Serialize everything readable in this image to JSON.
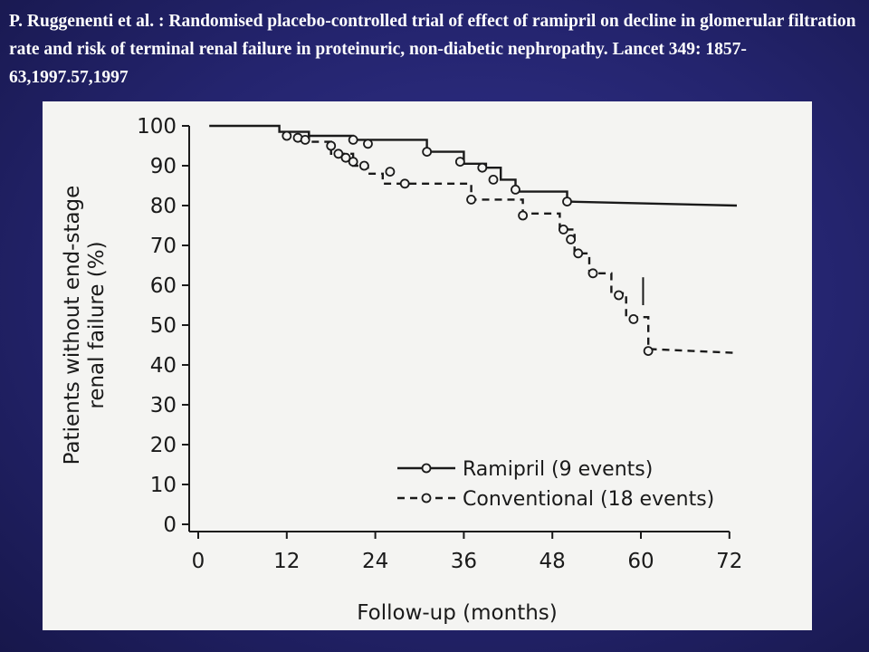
{
  "slide": {
    "title": "P. Ruggenenti et al. : Randomised placebo-controlled trial of effect of ramipril on decline in glomerular filtration rate and risk of terminal renal failure in proteinuric, non-diabetic nephropathy. Lancet 349: 1857-63,1997.57,1997"
  },
  "colors": {
    "background": "#24246e",
    "title_text": "#ffffff",
    "figure_background": "#f4f4f2",
    "ink": "#1a1a1a"
  },
  "chart_data": {
    "type": "line",
    "title": "",
    "xlabel": "Follow-up (months)",
    "ylabel": "Patients without end-stage renal failure (%)",
    "xlim": [
      0,
      72
    ],
    "ylim": [
      0,
      100
    ],
    "xticks": [
      0,
      12,
      24,
      36,
      48,
      60,
      72
    ],
    "yticks": [
      0,
      10,
      20,
      30,
      40,
      50,
      60,
      70,
      80,
      90,
      100
    ],
    "grid": false,
    "legend_position": "lower-right",
    "series": [
      {
        "name": "Ramipril (9 events)",
        "style": "solid",
        "step": [
          [
            1.5,
            100
          ],
          [
            11,
            100
          ],
          [
            11,
            98.5
          ],
          [
            15,
            98.5
          ],
          [
            15,
            97.5
          ],
          [
            21,
            97.5
          ],
          [
            21,
            96.5
          ],
          [
            31,
            96.5
          ],
          [
            31,
            93.5
          ],
          [
            36,
            93.5
          ],
          [
            36,
            90.5
          ],
          [
            39,
            90.5
          ],
          [
            39,
            89.5
          ],
          [
            41,
            89.5
          ],
          [
            41,
            86.5
          ],
          [
            43,
            86.5
          ],
          [
            43,
            83.5
          ],
          [
            50,
            83.5
          ],
          [
            50,
            81
          ],
          [
            73,
            80
          ]
        ],
        "markers": [
          [
            12,
            97.5
          ],
          [
            13.5,
            97
          ],
          [
            14.5,
            96.5
          ],
          [
            21,
            96.5
          ],
          [
            23,
            95.5
          ],
          [
            31,
            93.5
          ],
          [
            35.5,
            91
          ],
          [
            38.5,
            89.5
          ],
          [
            40,
            86.5
          ],
          [
            43,
            84
          ],
          [
            50,
            81
          ]
        ]
      },
      {
        "name": "Conventional (18 events)",
        "style": "dashed",
        "step": [
          [
            15,
            98.5
          ],
          [
            15,
            96
          ],
          [
            18,
            96
          ],
          [
            18,
            93
          ],
          [
            21,
            93
          ],
          [
            21,
            90
          ],
          [
            23,
            90
          ],
          [
            23,
            88
          ],
          [
            25,
            88
          ],
          [
            25,
            85.5
          ],
          [
            37,
            85.5
          ],
          [
            37,
            81.5
          ],
          [
            44,
            81.5
          ],
          [
            44,
            78
          ],
          [
            49,
            78
          ],
          [
            49,
            74
          ],
          [
            51,
            74
          ],
          [
            51,
            68
          ],
          [
            53,
            68
          ],
          [
            53,
            63
          ],
          [
            56,
            63
          ],
          [
            56,
            58
          ],
          [
            58,
            58
          ],
          [
            58,
            52
          ],
          [
            61,
            52
          ],
          [
            61,
            44
          ],
          [
            73,
            43
          ]
        ],
        "markers": [
          [
            18,
            95
          ],
          [
            19,
            93
          ],
          [
            20,
            92
          ],
          [
            21,
            91
          ],
          [
            22.5,
            90
          ],
          [
            26,
            88.5
          ],
          [
            28,
            85.5
          ],
          [
            37,
            81.5
          ],
          [
            44,
            77.5
          ],
          [
            49.5,
            74
          ],
          [
            50.5,
            71.5
          ],
          [
            51.5,
            68
          ],
          [
            53.5,
            63
          ],
          [
            57,
            57.5
          ],
          [
            59,
            51.5
          ],
          [
            61,
            43.5
          ]
        ]
      }
    ],
    "annotations": [
      "vertical tick near x=60 on Conventional curve"
    ]
  }
}
